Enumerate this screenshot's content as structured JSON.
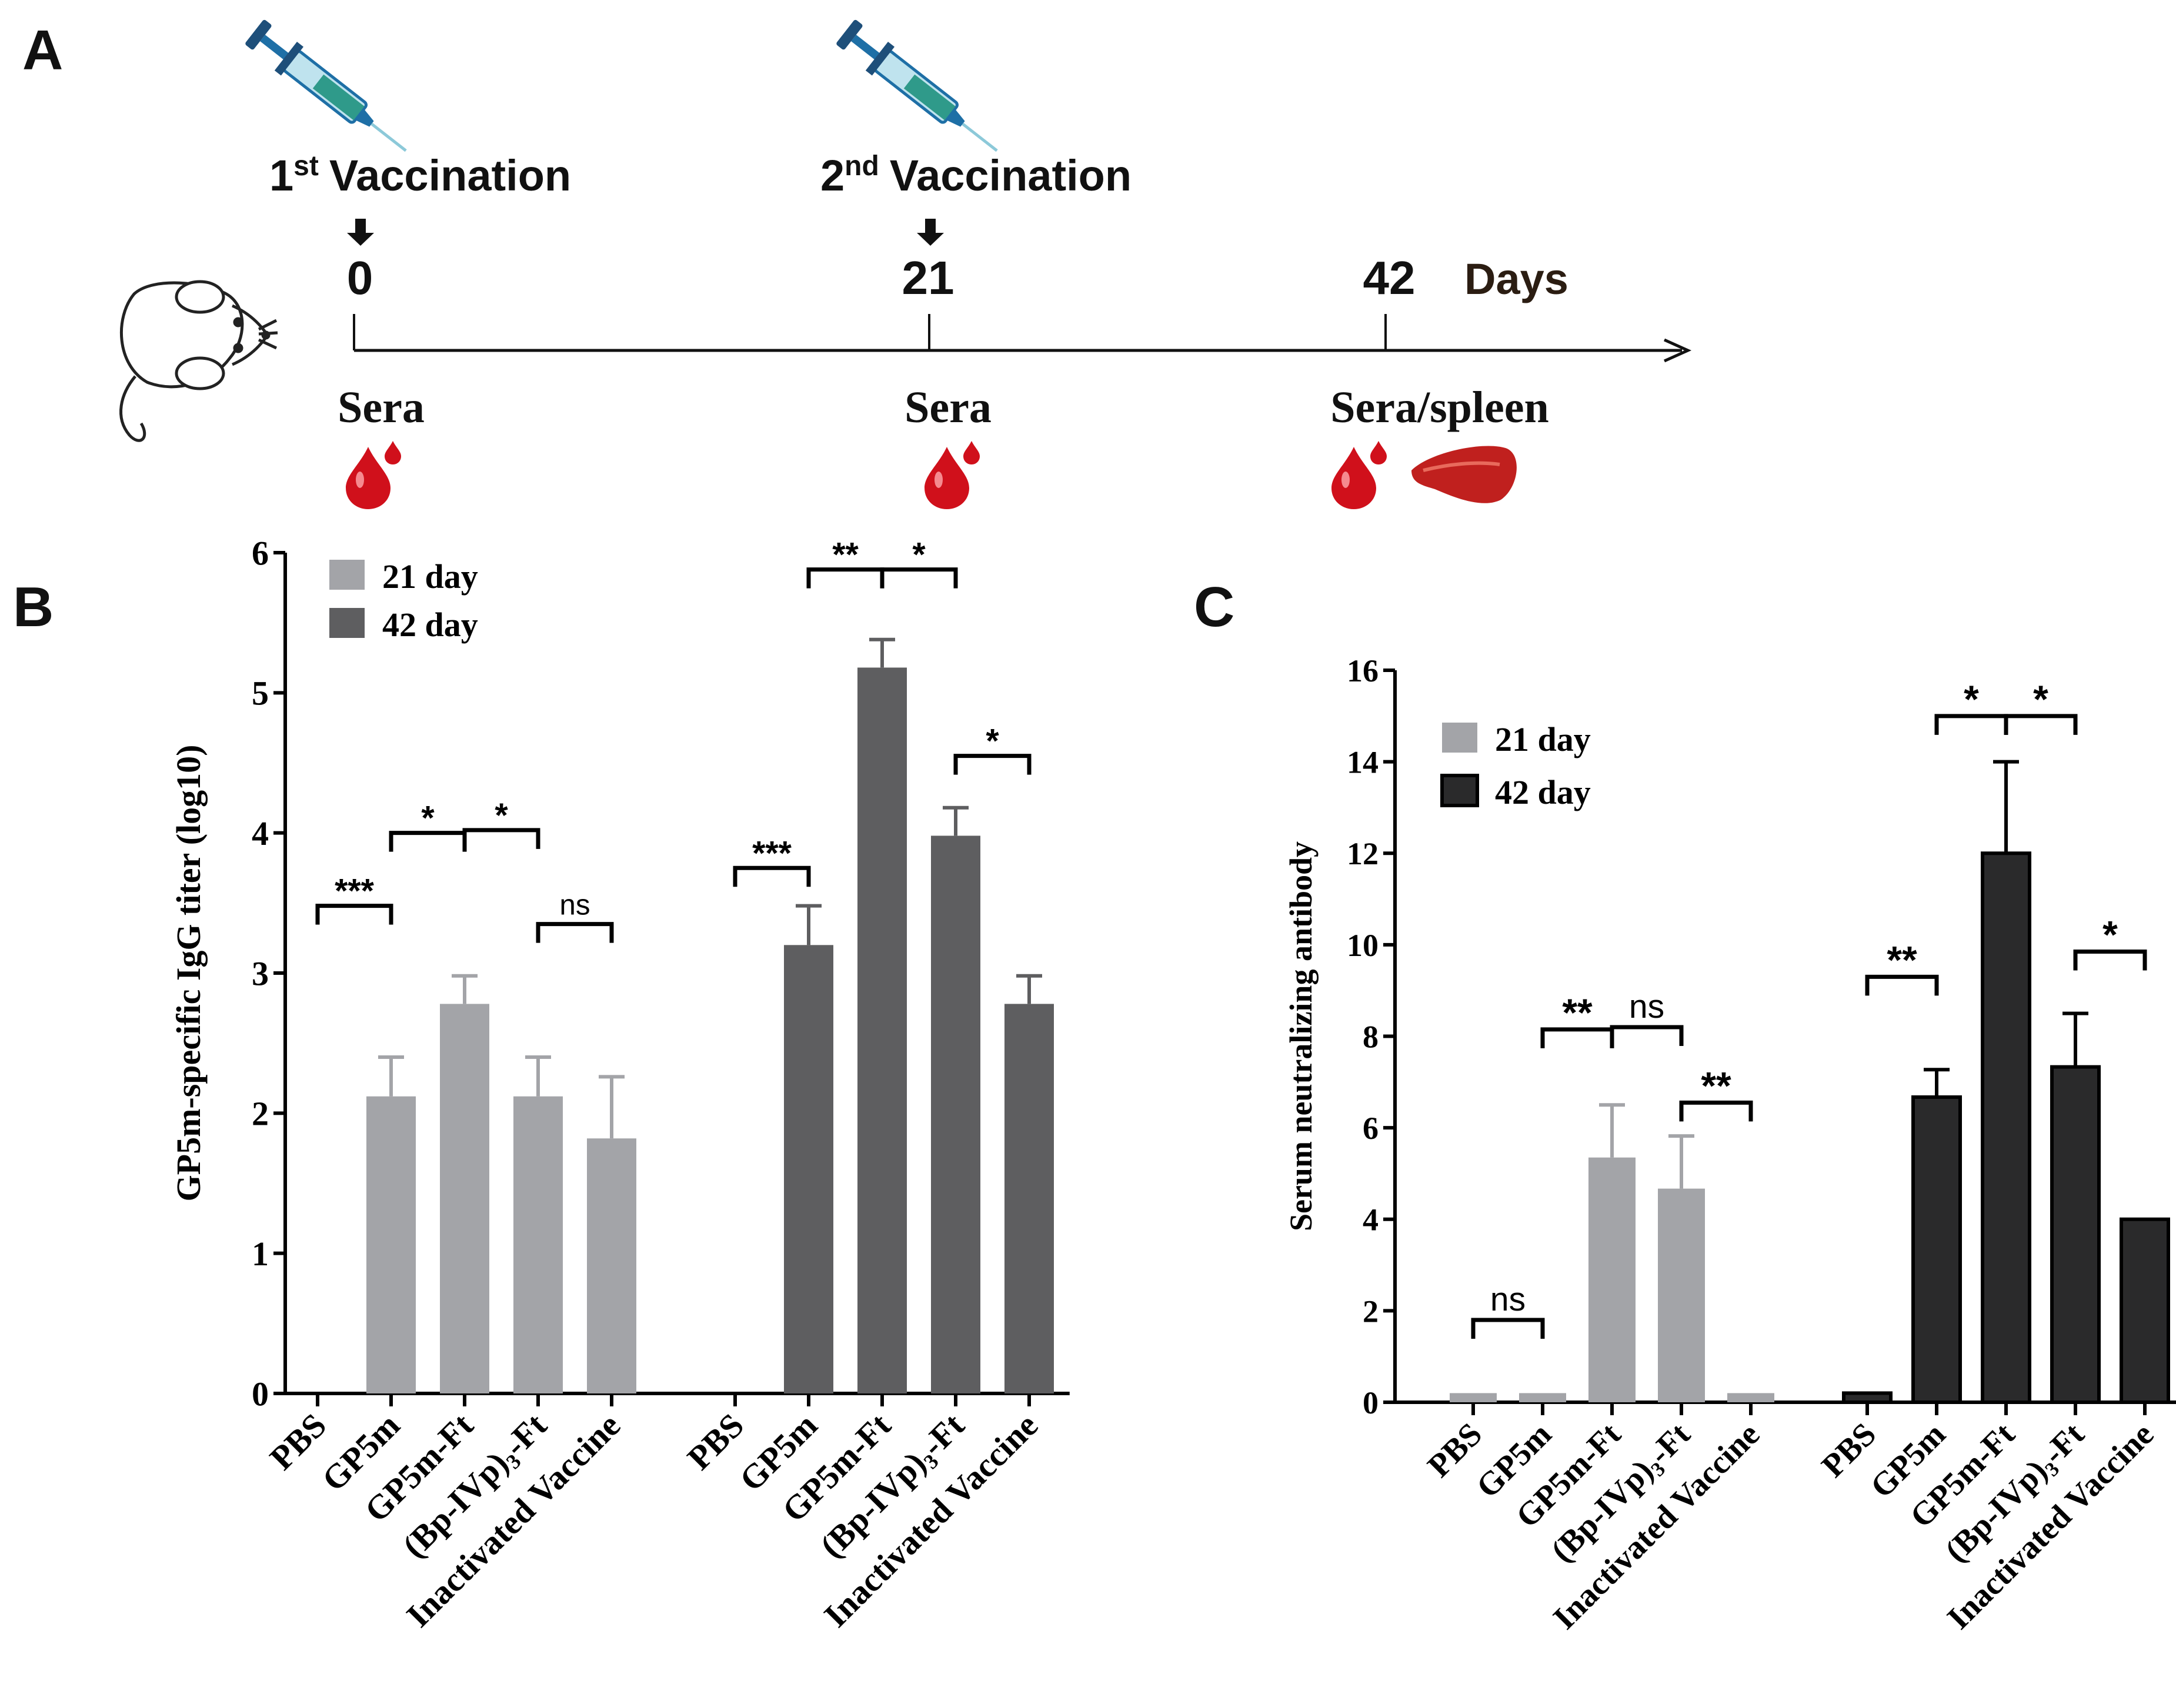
{
  "panel_a": {
    "letter": "A",
    "first_vaccination_sup": "st",
    "first_vaccination_num": "1",
    "first_vaccination_text": "Vaccination",
    "second_vaccination_num": "2",
    "second_vaccination_sup": "nd",
    "second_vaccination_text": "Vaccination",
    "day_0": "0",
    "day_21": "21",
    "day_42": "42",
    "days_label": "Days",
    "sera_0": "Sera",
    "sera_21": "Sera",
    "sera_spleen_42": "Sera/spleen",
    "colors": {
      "syringe_barrel": "#2f9a8a",
      "syringe_plunger": "#1e6fa6",
      "blood": "#d0101b",
      "spleen": "#c0201e"
    }
  },
  "panel_b": {
    "letter": "B"
  },
  "panel_c": {
    "letter": "C"
  },
  "chart_data": [
    {
      "type": "bar",
      "panel": "B",
      "ylabel": "GP5m-specific IgG titer (log10)",
      "ylim": [
        0,
        6
      ],
      "yticks": [
        "0",
        "1",
        "2",
        "3",
        "4",
        "5",
        "6"
      ],
      "categories": [
        "PBS",
        "GP5m",
        "GP5m-Ft",
        "(Bp-IVp)3-Ft",
        "Inactivated Vaccine"
      ],
      "series": [
        {
          "name": "21 day",
          "color": "#a3a4a8",
          "values": [
            0,
            2.12,
            2.78,
            2.12,
            1.82
          ],
          "errors": [
            0,
            0.28,
            0.2,
            0.28,
            0.44
          ]
        },
        {
          "name": "42 day",
          "color": "#5e5e60",
          "values": [
            0,
            3.2,
            5.18,
            3.98,
            2.78
          ],
          "errors": [
            0,
            0.28,
            0.2,
            0.2,
            0.2
          ]
        }
      ],
      "legend": [
        "21 day",
        "42 day"
      ],
      "significance": [
        {
          "label": "***",
          "series": 0,
          "from": 0,
          "to": 1,
          "y": 3.48
        },
        {
          "label": "*",
          "series": 0,
          "from": 1,
          "to": 2,
          "y": 4.0
        },
        {
          "label": "*",
          "series": 0,
          "from": 2,
          "to": 3,
          "y": 4.02
        },
        {
          "label": "ns",
          "series": 0,
          "from": 3,
          "to": 4,
          "y": 3.35
        },
        {
          "label": "***",
          "series": 1,
          "from": 0,
          "to": 1,
          "y": 3.75
        },
        {
          "label": "**",
          "series": 1,
          "from": 1,
          "to": 2,
          "y": 5.88
        },
        {
          "label": "*",
          "series": 1,
          "from": 2,
          "to": 3,
          "y": 5.88
        },
        {
          "label": "*",
          "series": 1,
          "from": 3,
          "to": 4,
          "y": 4.55
        }
      ]
    },
    {
      "type": "bar",
      "panel": "C",
      "ylabel": "Serum neutralizing antibody",
      "ylim": [
        0,
        16
      ],
      "yticks": [
        "0",
        "2",
        "4",
        "6",
        "8",
        "10",
        "12",
        "14",
        "16"
      ],
      "categories": [
        "PBS",
        "GP5m",
        "GP5m-Ft",
        "(Bp-IVp)3-Ft",
        "Inactivated Vaccine"
      ],
      "series": [
        {
          "name": "21 day",
          "color": "#a3a4a8",
          "values": [
            0.2,
            0.2,
            5.35,
            4.67,
            0.2
          ],
          "errors": [
            0,
            0,
            1.15,
            1.15,
            0
          ]
        },
        {
          "name": "42 day",
          "color": "#2a2a2b",
          "values": [
            0.2,
            6.67,
            12.0,
            7.33,
            4.0
          ],
          "errors": [
            0,
            0.6,
            2.0,
            1.17,
            0
          ]
        }
      ],
      "legend": [
        "21 day",
        "42 day"
      ],
      "significance": [
        {
          "label": "ns",
          "series": 0,
          "from": 0,
          "to": 1,
          "y": 1.8
        },
        {
          "label": "**",
          "series": 0,
          "from": 1,
          "to": 2,
          "y": 8.15
        },
        {
          "label": "ns",
          "series": 0,
          "from": 2,
          "to": 3,
          "y": 8.2
        },
        {
          "label": "**",
          "series": 0,
          "from": 3,
          "to": 4,
          "y": 6.55
        },
        {
          "label": "**",
          "series": 1,
          "from": 0,
          "to": 1,
          "y": 9.3
        },
        {
          "label": "*",
          "series": 1,
          "from": 1,
          "to": 2,
          "y": 15.0
        },
        {
          "label": "*",
          "series": 1,
          "from": 2,
          "to": 3,
          "y": 15.0
        },
        {
          "label": "*",
          "series": 1,
          "from": 3,
          "to": 4,
          "y": 9.85
        }
      ]
    }
  ]
}
